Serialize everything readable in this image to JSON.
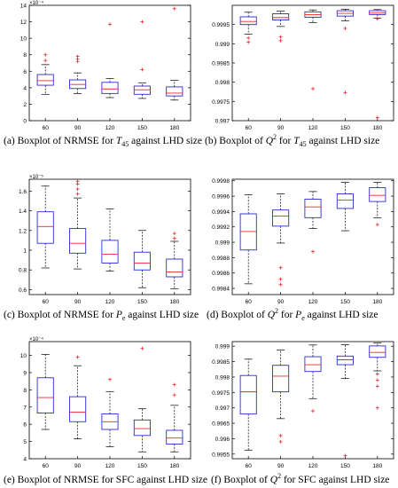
{
  "figure": {
    "panels": [
      {
        "caption_prefix": "(a) Boxplot of NRMSE for ",
        "caption_sym": "T",
        "caption_sub": "45",
        "caption_suffix": " against LHD size"
      },
      {
        "caption_prefix": "(b) Boxplot of ",
        "caption_sym": "Q",
        "caption_sup": "2",
        "caption_mid": " for ",
        "caption_sym2": "T",
        "caption_sub": "45",
        "caption_suffix": " against LHD size"
      },
      {
        "caption_prefix": "(c) Boxplot of NRMSE for ",
        "caption_sym": "P",
        "caption_sub": "e",
        "caption_suffix": " against LHD size"
      },
      {
        "caption_prefix": "(d) Boxplot of ",
        "caption_sym": "Q",
        "caption_sup": "2",
        "caption_mid": " for  ",
        "caption_sym2": "P",
        "caption_sub": "e",
        "caption_suffix": " against LHD size"
      },
      {
        "caption_prefix": "(e) Boxplot of NRMSE for SFC against LHD size"
      },
      {
        "caption_prefix": "(f) Boxplot of ",
        "caption_sym": "Q",
        "caption_sup": "2",
        "caption_suffix": " for  SFC against LHD size"
      }
    ]
  },
  "chart_data": [
    {
      "type": "boxplot",
      "categories": [
        "60",
        "90",
        "120",
        "150",
        "180"
      ],
      "ylim": [
        0,
        14
      ],
      "yticks": [
        0,
        2,
        4,
        6,
        8,
        10,
        12,
        14
      ],
      "exponent_label": "×10⁻⁴",
      "boxes": [
        {
          "wlo": 3.2,
          "q1": 4.3,
          "med": 4.85,
          "q3": 5.6,
          "whi": 6.8,
          "outliers": [
            7.3,
            8.0
          ]
        },
        {
          "wlo": 3.3,
          "q1": 3.9,
          "med": 4.4,
          "q3": 4.95,
          "whi": 5.8,
          "outliers": [
            7.2,
            7.5,
            7.8
          ]
        },
        {
          "wlo": 2.8,
          "q1": 3.3,
          "med": 3.85,
          "q3": 4.65,
          "whi": 5.1,
          "outliers": [
            11.7
          ]
        },
        {
          "wlo": 2.7,
          "q1": 3.2,
          "med": 3.75,
          "q3": 4.2,
          "whi": 4.6,
          "outliers": [
            6.2,
            12.0
          ]
        },
        {
          "wlo": 2.5,
          "q1": 3.0,
          "med": 3.35,
          "q3": 4.1,
          "whi": 4.9,
          "outliers": [
            13.6
          ]
        }
      ]
    },
    {
      "type": "boxplot",
      "categories": [
        "60",
        "90",
        "120",
        "150",
        "180"
      ],
      "ylim": [
        0.997,
        1.0
      ],
      "yticks": [
        0.997,
        0.9975,
        0.998,
        0.9985,
        0.999,
        0.9995
      ],
      "ytick_labels": [
        "0.997",
        "0.9975",
        "0.998",
        "0.9985",
        "0.999",
        "0.9995"
      ],
      "exponent_label": "",
      "boxes": [
        {
          "wlo": 0.99925,
          "q1": 0.9995,
          "med": 0.99958,
          "q3": 0.9997,
          "whi": 0.99982,
          "outliers": [
            0.99904,
            0.99915
          ]
        },
        {
          "wlo": 0.99945,
          "q1": 0.99962,
          "med": 0.99968,
          "q3": 0.99978,
          "whi": 0.99985,
          "outliers": [
            0.99908,
            0.99918
          ]
        },
        {
          "wlo": 0.99955,
          "q1": 0.99969,
          "med": 0.99976,
          "q3": 0.99983,
          "whi": 0.99988,
          "outliers": [
            0.99783
          ]
        },
        {
          "wlo": 0.9996,
          "q1": 0.99972,
          "med": 0.99979,
          "q3": 0.99986,
          "whi": 0.9999,
          "outliers": [
            0.9994,
            0.99773
          ]
        },
        {
          "wlo": 0.99967,
          "q1": 0.99976,
          "med": 0.9998,
          "q3": 0.99986,
          "whi": 0.99989,
          "outliers": [
            0.99965,
            0.99708
          ]
        }
      ]
    },
    {
      "type": "boxplot",
      "categories": [
        "60",
        "90",
        "120",
        "150",
        "180"
      ],
      "ylim": [
        0.55,
        1.72
      ],
      "yticks": [
        0.6,
        0.8,
        1.0,
        1.2,
        1.4,
        1.6
      ],
      "ytick_labels": [
        "0.6",
        "0.8",
        "1",
        "1.2",
        "1.4",
        "1.6"
      ],
      "exponent_label": "×10⁻⁵",
      "boxes": [
        {
          "wlo": 0.82,
          "q1": 1.07,
          "med": 1.24,
          "q3": 1.39,
          "whi": 1.65,
          "outliers": []
        },
        {
          "wlo": 0.81,
          "q1": 0.97,
          "med": 1.07,
          "q3": 1.22,
          "whi": 1.53,
          "outliers": [
            1.57,
            1.62,
            1.67,
            1.7
          ]
        },
        {
          "wlo": 0.79,
          "q1": 0.87,
          "med": 0.96,
          "q3": 1.1,
          "whi": 1.42,
          "outliers": []
        },
        {
          "wlo": 0.62,
          "q1": 0.8,
          "med": 0.87,
          "q3": 0.98,
          "whi": 1.2,
          "outliers": []
        },
        {
          "wlo": 0.61,
          "q1": 0.73,
          "med": 0.78,
          "q3": 0.91,
          "whi": 1.09,
          "outliers": [
            1.12,
            1.17
          ]
        }
      ]
    },
    {
      "type": "boxplot",
      "categories": [
        "60",
        "90",
        "120",
        "150",
        "180"
      ],
      "ylim": [
        0.99832,
        0.99982
      ],
      "yticks": [
        0.9984,
        0.9986,
        0.9988,
        0.999,
        0.9992,
        0.9994,
        0.9996,
        0.9998
      ],
      "ytick_labels": [
        "0.9984",
        "0.9986",
        "0.9988",
        "0.999",
        "0.9992",
        "0.9994",
        "0.9996",
        "0.9998"
      ],
      "exponent_label": "",
      "boxes": [
        {
          "wlo": 0.99846,
          "q1": 0.9989,
          "med": 0.99914,
          "q3": 0.99937,
          "whi": 0.99962,
          "outliers": []
        },
        {
          "wlo": 0.99899,
          "q1": 0.99921,
          "med": 0.99934,
          "q3": 0.99942,
          "whi": 0.99963,
          "outliers": [
            0.99867,
            0.99852,
            0.99845
          ]
        },
        {
          "wlo": 0.99918,
          "q1": 0.99932,
          "med": 0.99946,
          "q3": 0.99956,
          "whi": 0.99966,
          "outliers": [
            0.99888
          ]
        },
        {
          "wlo": 0.99915,
          "q1": 0.99944,
          "med": 0.99955,
          "q3": 0.99963,
          "whi": 0.99978,
          "outliers": []
        },
        {
          "wlo": 0.99932,
          "q1": 0.99953,
          "med": 0.99961,
          "q3": 0.99971,
          "whi": 0.99978,
          "outliers": [
            0.99923
          ]
        }
      ]
    },
    {
      "type": "boxplot",
      "categories": [
        "60",
        "90",
        "120",
        "150",
        "180"
      ],
      "ylim": [
        4,
        10.8
      ],
      "yticks": [
        4,
        5,
        6,
        7,
        8,
        9,
        10
      ],
      "exponent_label": "×10⁻⁴",
      "boxes": [
        {
          "wlo": 5.7,
          "q1": 6.65,
          "med": 7.55,
          "q3": 8.7,
          "whi": 10.05,
          "outliers": []
        },
        {
          "wlo": 5.15,
          "q1": 6.15,
          "med": 6.7,
          "q3": 7.6,
          "whi": 9.4,
          "outliers": [
            9.9
          ]
        },
        {
          "wlo": 4.7,
          "q1": 5.7,
          "med": 6.15,
          "q3": 6.6,
          "whi": 7.9,
          "outliers": [
            8.6
          ]
        },
        {
          "wlo": 4.4,
          "q1": 5.35,
          "med": 5.75,
          "q3": 6.25,
          "whi": 6.9,
          "outliers": [
            10.4
          ]
        },
        {
          "wlo": 4.4,
          "q1": 4.85,
          "med": 5.2,
          "q3": 5.65,
          "whi": 7.1,
          "outliers": [
            7.7,
            8.3
          ]
        }
      ]
    },
    {
      "type": "boxplot",
      "categories": [
        "60",
        "90",
        "120",
        "150",
        "180"
      ],
      "ylim": [
        0.99535,
        0.99915
      ],
      "yticks": [
        0.9955,
        0.996,
        0.9965,
        0.997,
        0.9975,
        0.998,
        0.9985,
        0.999
      ],
      "ytick_labels": [
        "0.9955",
        "0.996",
        "0.9965",
        "0.997",
        "0.9975",
        "0.998",
        "0.9985",
        "0.999"
      ],
      "exponent_label": "",
      "boxes": [
        {
          "wlo": 0.99563,
          "q1": 0.9968,
          "med": 0.99752,
          "q3": 0.99805,
          "whi": 0.99858,
          "outliers": []
        },
        {
          "wlo": 0.99665,
          "q1": 0.99752,
          "med": 0.99803,
          "q3": 0.99838,
          "whi": 0.99888,
          "outliers": [
            0.9961,
            0.9959
          ]
        },
        {
          "wlo": 0.9973,
          "q1": 0.99818,
          "med": 0.9984,
          "q3": 0.99866,
          "whi": 0.99904,
          "outliers": [
            0.9969
          ]
        },
        {
          "wlo": 0.99795,
          "q1": 0.9984,
          "med": 0.99856,
          "q3": 0.99868,
          "whi": 0.99905,
          "outliers": [
            0.99545
          ]
        },
        {
          "wlo": 0.9982,
          "q1": 0.99864,
          "med": 0.9988,
          "q3": 0.99901,
          "whi": 0.9991,
          "outliers": [
            0.9981,
            0.9979,
            0.9977,
            0.997
          ]
        }
      ]
    }
  ]
}
